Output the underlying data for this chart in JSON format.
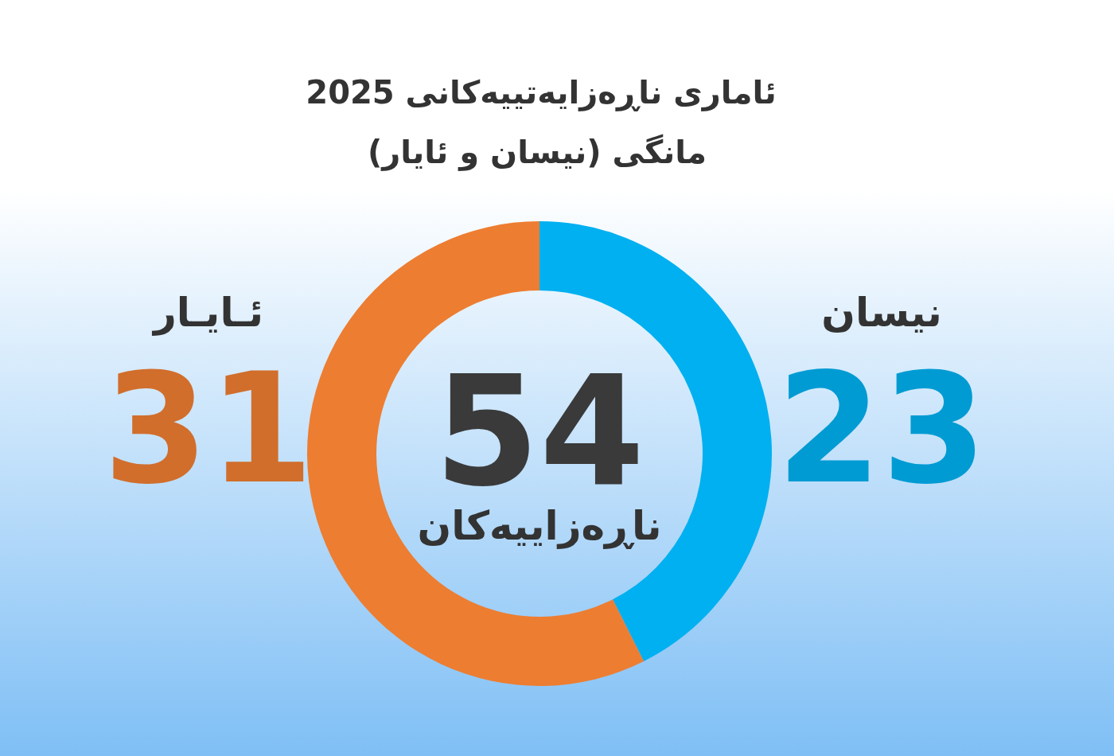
{
  "chart_data": {
    "type": "donut",
    "title": "ئاماری ناڕەزایەتییەکانی 2025",
    "subtitle": "مانگی (نیسان و ئایار)",
    "categories": [
      "نیسان",
      "ئـایـار"
    ],
    "values": [
      23,
      31
    ],
    "colors": [
      "#00b0f0",
      "#ed7d31"
    ],
    "data_labels": true,
    "annotations": [
      "54",
      "ناڕەزاییەکان"
    ]
  }
}
